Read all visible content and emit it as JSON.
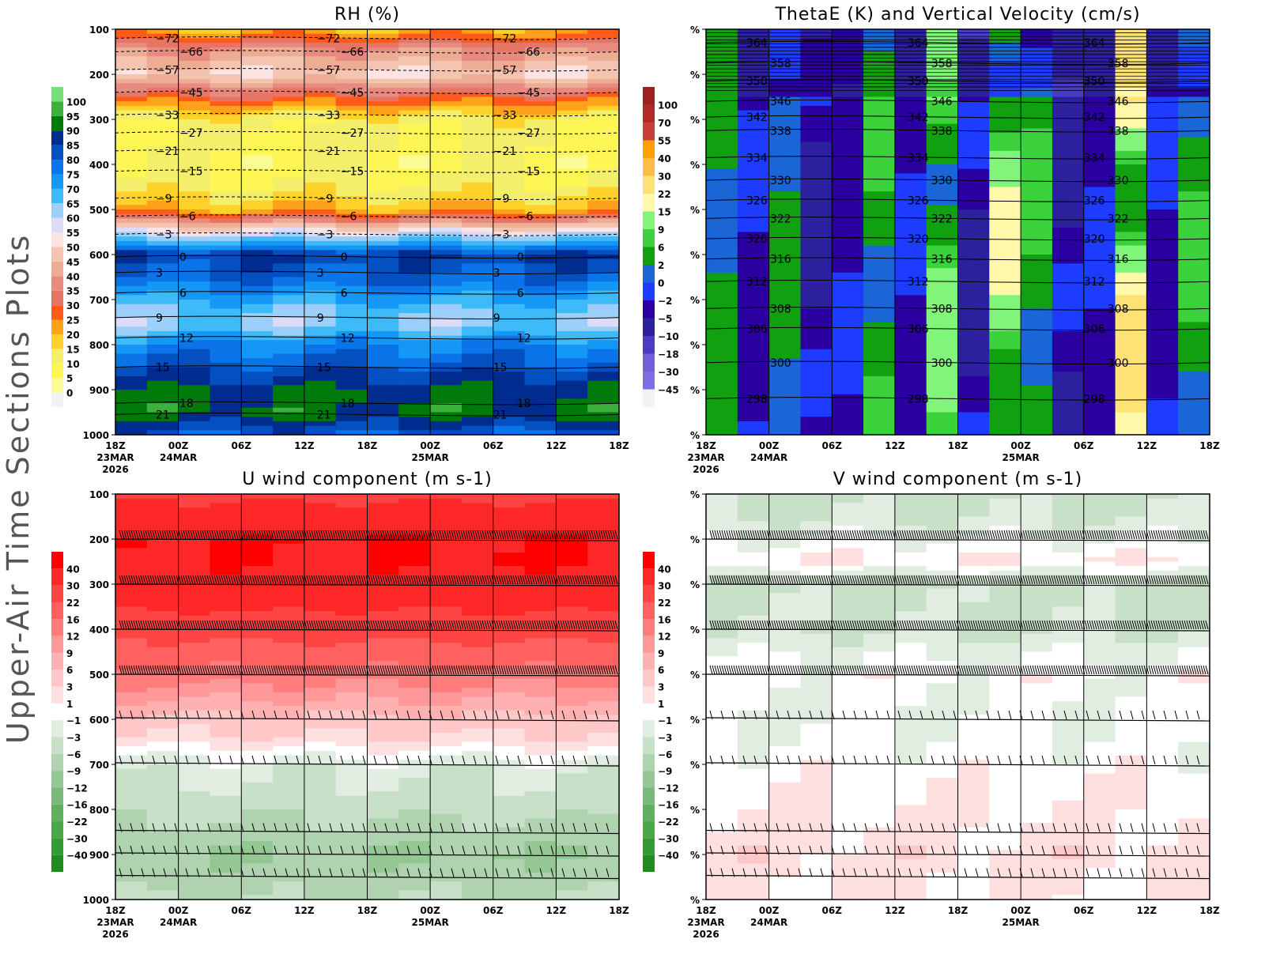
{
  "side_title": "Upper-Air Time Sections Plots",
  "chart_data": [
    {
      "type": "heatmap",
      "title": "RH (%)",
      "x_ticks": [
        "18Z",
        "00Z",
        "06Z",
        "12Z",
        "18Z",
        "00Z",
        "06Z",
        "12Z",
        "18Z"
      ],
      "x_dates": {
        "0": "23MAR",
        "1": "24MAR",
        "5": "25MAR"
      },
      "x_year": "2026",
      "y_ticks": [
        "100",
        "200",
        "300",
        "400",
        "500",
        "600",
        "700",
        "800",
        "900",
        "1000"
      ],
      "ylim": [
        1000,
        100
      ],
      "colorbar_levels": [
        0,
        5,
        10,
        15,
        20,
        25,
        30,
        35,
        40,
        45,
        50,
        55,
        60,
        65,
        70,
        75,
        80,
        85,
        90,
        95,
        100
      ],
      "colorbar_colors": [
        "#f2f2f2",
        "#fbfb96",
        "#fdf654",
        "#f4ef6b",
        "#ffd22b",
        "#ffa11a",
        "#ff5a1a",
        "#e57565",
        "#e88a7f",
        "#edac94",
        "#f4c4b0",
        "#fde4e4",
        "#dcdcf8",
        "#9ccffa",
        "#3dbaf7",
        "#1497f5",
        "#0b74e8",
        "#0450c0",
        "#002c90",
        "#007a0a",
        "#3bb03b",
        "#78e078"
      ],
      "profile": {
        "pressure": [
          100,
          150,
          200,
          250,
          300,
          350,
          400,
          450,
          500,
          550,
          600,
          650,
          700,
          750,
          800,
          850,
          900,
          950,
          1000
        ],
        "values": [
          20,
          40,
          50,
          30,
          12,
          10,
          8,
          12,
          20,
          55,
          85,
          80,
          70,
          62,
          75,
          82,
          90,
          92,
          80
        ]
      },
      "contours": {
        "name": "temperature",
        "pressure": [
          120,
          150,
          190,
          240,
          290,
          330,
          370,
          415,
          475,
          515,
          555,
          605,
          640,
          685,
          740,
          785,
          850,
          930,
          955
        ],
        "labels": [
          "-72",
          "-66",
          "-57",
          "-45",
          "-33",
          "-27",
          "-21",
          "-15",
          "-9",
          "-6",
          "-3",
          "0",
          "3",
          "6",
          "9",
          "12",
          "15",
          "18",
          "21"
        ]
      }
    },
    {
      "type": "heatmap",
      "title": "ThetaE (K) and Vertical Velocity (cm/s)",
      "x_ticks": [
        "18Z",
        "00Z",
        "06Z",
        "12Z",
        "18Z",
        "00Z",
        "06Z",
        "12Z",
        "18Z"
      ],
      "x_dates": {
        "0": "23MAR",
        "1": "24MAR",
        "5": "25MAR"
      },
      "x_year": "2026",
      "y_tick_label": "%",
      "ylim": [
        1000,
        100
      ],
      "colorbar_levels": [
        -45,
        -30,
        -18,
        -10,
        -5,
        -2,
        0,
        2,
        6,
        9,
        15,
        22,
        30,
        40,
        55,
        70,
        100
      ],
      "colorbar_colors": [
        "#f2f2f2",
        "#7d6ee6",
        "#7460dc",
        "#4b3cc6",
        "#2c209e",
        "#2a00a0",
        "#1e3cff",
        "#1a66d6",
        "#10a010",
        "#3cd23c",
        "#80f57a",
        "#fff8a8",
        "#ffe276",
        "#ffbd44",
        "#ff9f00",
        "#c83c3c",
        "#b42828",
        "#a02020"
      ],
      "column_velocity": [
        6,
        -5,
        4,
        -10,
        -5,
        9,
        -5,
        15,
        -10,
        20,
        9,
        -10,
        -5,
        30,
        -5,
        9,
        -5
      ],
      "contours": {
        "name": "thetaE",
        "pressure": [
          130,
          175,
          215,
          260,
          295,
          325,
          385,
          435,
          480,
          520,
          565,
          610,
          660,
          720,
          765,
          840,
          920
        ],
        "labels": [
          "364",
          "358",
          "350",
          "346",
          "342",
          "338",
          "334",
          "330",
          "326",
          "322",
          "320",
          "316",
          "312",
          "308",
          "306",
          "300",
          "298"
        ]
      }
    },
    {
      "type": "heatmap",
      "title": "U wind component (m s-1)",
      "x_ticks": [
        "18Z",
        "00Z",
        "06Z",
        "12Z",
        "18Z",
        "00Z",
        "06Z",
        "12Z",
        "18Z"
      ],
      "x_dates": {
        "0": "23MAR",
        "1": "24MAR",
        "5": "25MAR"
      },
      "x_year": "2026",
      "y_ticks": [
        "100",
        "200",
        "300",
        "400",
        "500",
        "600",
        "700",
        "800",
        "900",
        "1000"
      ],
      "ylim": [
        1000,
        100
      ],
      "colorbar_levels": [
        -40,
        -30,
        -22,
        -16,
        -12,
        -9,
        -6,
        -3,
        -1,
        1,
        3,
        6,
        9,
        12,
        16,
        22,
        30,
        40
      ],
      "colorbar_colors": [
        "#1e8c1e",
        "#349a34",
        "#4aa84a",
        "#60b060",
        "#7ab97a",
        "#94c794",
        "#aed3ae",
        "#c8e0c8",
        "#e0ede0",
        "#ffffff",
        "#ffe0e0",
        "#ffc8c8",
        "#ffb0b0",
        "#ff9898",
        "#ff7c7c",
        "#ff6060",
        "#ff4444",
        "#ff2828",
        "#ff0000"
      ],
      "profile": {
        "pressure": [
          100,
          150,
          200,
          250,
          300,
          400,
          500,
          600,
          650,
          700,
          800,
          900,
          1000
        ],
        "values": [
          28,
          34,
          40,
          40,
          38,
          25,
          14,
          5,
          2,
          -2,
          -5,
          -9,
          -6
        ]
      },
      "barb_levels": [
        200,
        300,
        400,
        500,
        600,
        700,
        850,
        900,
        950
      ]
    },
    {
      "type": "heatmap",
      "title": "V wind component (m s-1)",
      "x_ticks": [
        "18Z",
        "00Z",
        "06Z",
        "12Z",
        "18Z",
        "00Z",
        "06Z",
        "12Z",
        "18Z"
      ],
      "x_dates": {
        "0": "23MAR",
        "1": "24MAR",
        "5": "25MAR"
      },
      "x_year": "2026",
      "y_tick_label": "%",
      "ylim": [
        1000,
        100
      ],
      "colorbar_levels": [
        -40,
        -30,
        -22,
        -16,
        -12,
        -9,
        -6,
        -3,
        -1,
        1,
        3,
        6,
        9,
        12,
        16,
        22,
        30,
        40
      ],
      "colorbar_colors": [
        "#1e8c1e",
        "#349a34",
        "#4aa84a",
        "#60b060",
        "#7ab97a",
        "#94c794",
        "#aed3ae",
        "#c8e0c8",
        "#e0ede0",
        "#ffffff",
        "#ffe0e0",
        "#ffc8c8",
        "#ffb0b0",
        "#ff9898",
        "#ff7c7c",
        "#ff6060",
        "#ff4444",
        "#ff2828",
        "#ff0000"
      ],
      "profile": {
        "pressure": [
          100,
          150,
          200,
          250,
          300,
          400,
          500,
          600,
          700,
          800,
          900,
          1000
        ],
        "values": [
          -4,
          -3,
          -1,
          1,
          -4,
          -3,
          0,
          -1,
          0,
          1,
          2,
          1
        ]
      },
      "barb_levels": [
        200,
        300,
        400,
        500,
        600,
        700,
        850,
        900,
        950
      ]
    }
  ]
}
